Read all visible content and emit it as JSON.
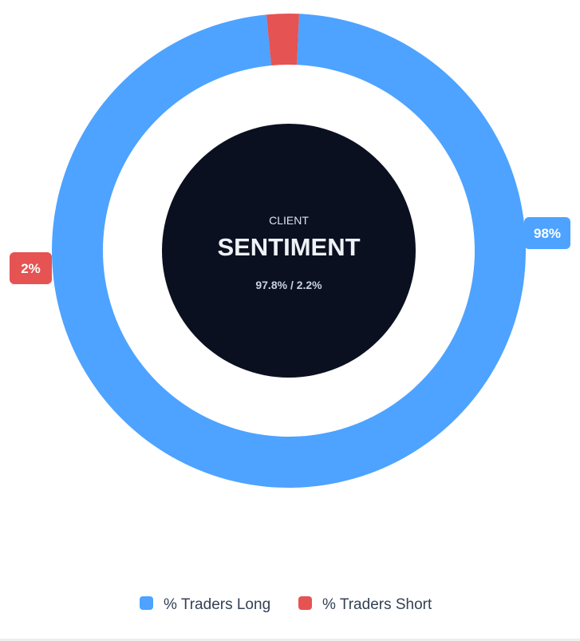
{
  "chart_data": {
    "type": "pie",
    "variant": "donut",
    "categories": [
      "% Traders Long",
      "% Traders Short"
    ],
    "values": [
      97.8,
      2.2
    ],
    "data_labels": [
      "98%",
      "2%"
    ],
    "colors": [
      "#4da3ff",
      "#e55353"
    ],
    "center": {
      "overline": "CLIENT",
      "title": "SENTIMENT",
      "subtitle": "97.8% / 2.2%",
      "background": "#0b1020"
    },
    "legend": {
      "position": "bottom",
      "items": [
        {
          "label": "% Traders Long",
          "color": "#4da3ff"
        },
        {
          "label": "% Traders Short",
          "color": "#e55353"
        }
      ]
    }
  }
}
